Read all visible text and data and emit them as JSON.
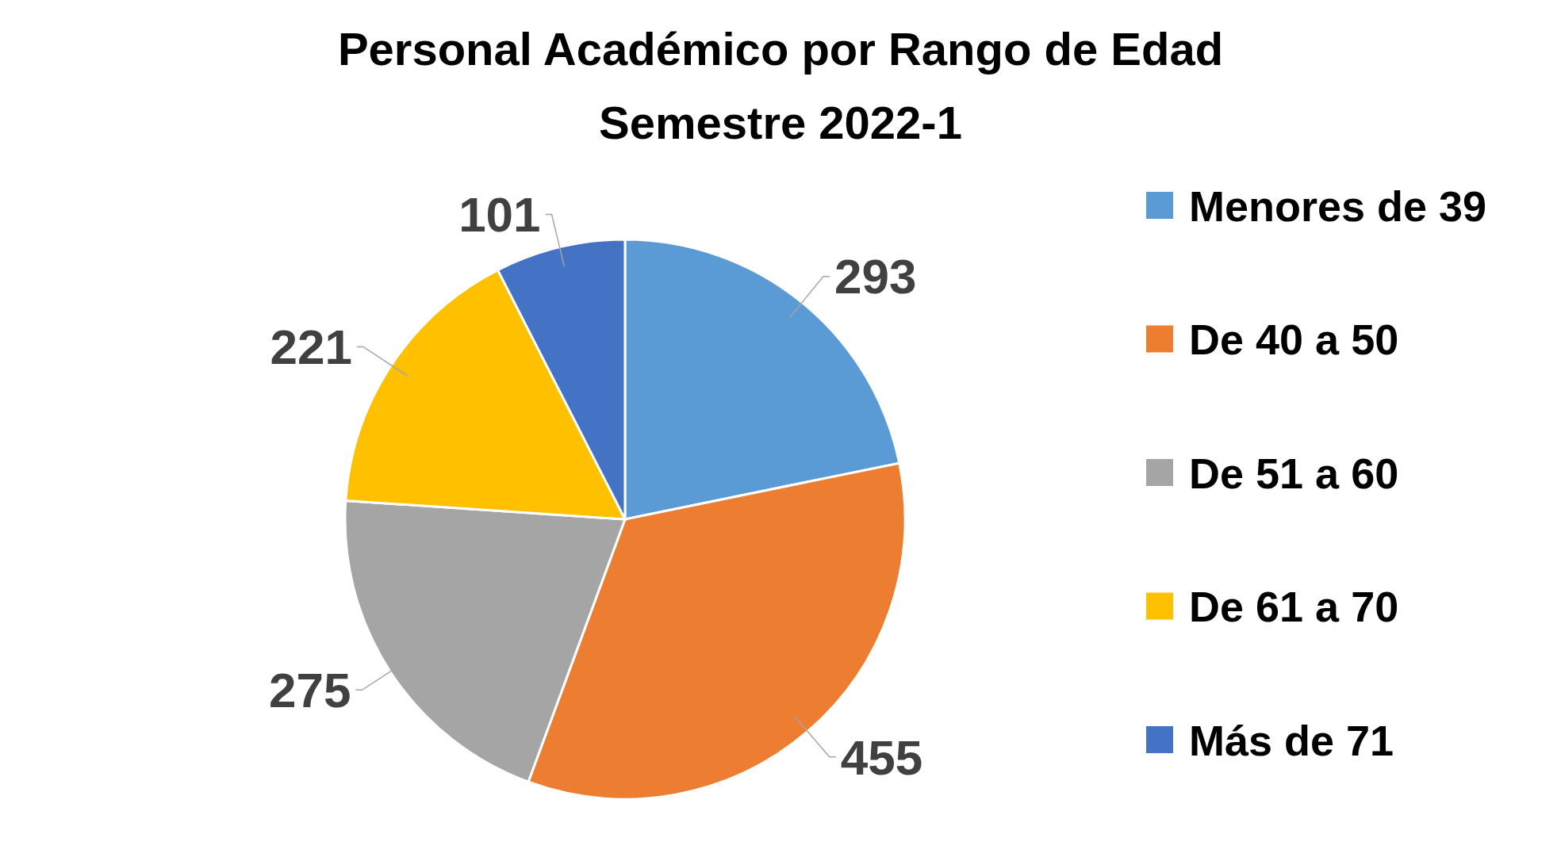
{
  "chart_data": {
    "type": "pie",
    "title": "Personal Académico por Rango de Edad",
    "subtitle": "Semestre 2022-1",
    "categories": [
      "Menores de 39",
      "De 40 a 50",
      "De 51 a 60",
      "De 61 a 70",
      "Más de 71"
    ],
    "values": [
      293,
      455,
      275,
      221,
      101
    ],
    "colors": [
      "#5b9bd5",
      "#ed7d31",
      "#a5a5a5",
      "#ffc000",
      "#4472c4"
    ],
    "data_labels": true,
    "legend": "right"
  }
}
